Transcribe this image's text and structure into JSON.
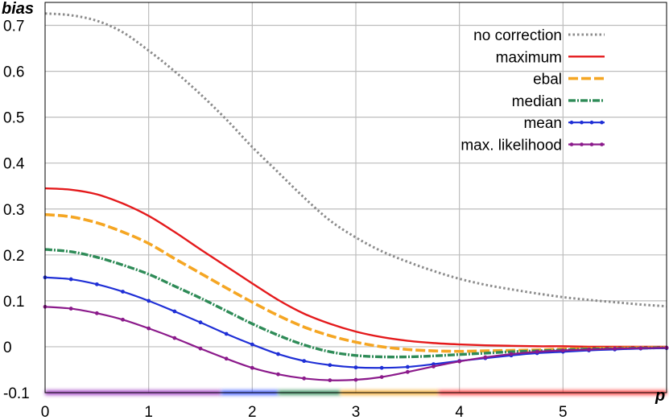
{
  "chart_data": {
    "type": "line",
    "xlabel": "p",
    "ylabel": "bias",
    "xlim": [
      0,
      6
    ],
    "ylim": [
      -0.1,
      0.75
    ],
    "x_ticks": [
      0,
      1,
      2,
      3,
      4,
      5
    ],
    "y_ticks": [
      -0.1,
      0,
      0.1,
      0.2,
      0.3,
      0.4,
      0.5,
      0.6,
      0.7
    ],
    "x_tick_labels": [
      "0",
      "1",
      "2",
      "3",
      "4",
      "5"
    ],
    "y_tick_labels": [
      "-0.1",
      "0",
      "0.1",
      "0.2",
      "0.3",
      "0.4",
      "0.5",
      "0.6",
      "0.7"
    ],
    "grid": true,
    "legend_position": "top-right",
    "series": [
      {
        "name": "no correction",
        "color": "#8c8c8c",
        "style": "dotted",
        "x": [
          0,
          0.25,
          0.5,
          0.75,
          1,
          1.25,
          1.5,
          1.75,
          2,
          2.25,
          2.5,
          2.75,
          3,
          3.25,
          3.5,
          3.75,
          4,
          4.25,
          4.5,
          4.75,
          5,
          5.25,
          5.5,
          5.75,
          6
        ],
        "y": [
          0.726,
          0.722,
          0.71,
          0.685,
          0.645,
          0.6,
          0.55,
          0.495,
          0.435,
          0.38,
          0.325,
          0.275,
          0.238,
          0.208,
          0.185,
          0.165,
          0.148,
          0.135,
          0.125,
          0.116,
          0.108,
          0.102,
          0.097,
          0.092,
          0.088
        ]
      },
      {
        "name": "maximum",
        "color": "#e41a1c",
        "style": "solid",
        "x": [
          0,
          0.25,
          0.5,
          0.75,
          1,
          1.25,
          1.5,
          1.75,
          2,
          2.25,
          2.5,
          2.75,
          3,
          3.25,
          3.5,
          3.75,
          4,
          4.25,
          4.5,
          4.75,
          5,
          5.25,
          5.5,
          5.75,
          6
        ],
        "y": [
          0.345,
          0.342,
          0.332,
          0.312,
          0.285,
          0.25,
          0.212,
          0.175,
          0.138,
          0.102,
          0.072,
          0.05,
          0.033,
          0.021,
          0.013,
          0.008,
          0.005,
          0.003,
          0.002,
          0.001,
          0.001,
          0.0,
          0.0,
          0.0,
          0.0
        ]
      },
      {
        "name": "ebal",
        "color": "#f5a623",
        "style": "thick-dashed",
        "x": [
          0,
          0.25,
          0.5,
          0.75,
          1,
          1.25,
          1.5,
          1.75,
          2,
          2.25,
          2.5,
          2.75,
          3,
          3.25,
          3.5,
          3.75,
          4,
          4.25,
          4.5,
          4.75,
          5,
          5.25,
          5.5,
          5.75,
          6
        ],
        "y": [
          0.288,
          0.283,
          0.27,
          0.25,
          0.225,
          0.192,
          0.16,
          0.128,
          0.097,
          0.068,
          0.043,
          0.024,
          0.01,
          0.0,
          -0.006,
          -0.009,
          -0.01,
          -0.009,
          -0.008,
          -0.007,
          -0.005,
          -0.004,
          -0.003,
          -0.002,
          -0.002
        ]
      },
      {
        "name": "median",
        "color": "#2e8b57",
        "style": "dash-dot",
        "x": [
          0,
          0.25,
          0.5,
          0.75,
          1,
          1.25,
          1.5,
          1.75,
          2,
          2.25,
          2.5,
          2.75,
          3,
          3.25,
          3.5,
          3.75,
          4,
          4.25,
          4.5,
          4.75,
          5,
          5.25,
          5.5,
          5.75,
          6
        ],
        "y": [
          0.212,
          0.207,
          0.195,
          0.178,
          0.158,
          0.132,
          0.106,
          0.078,
          0.05,
          0.025,
          0.004,
          -0.011,
          -0.019,
          -0.022,
          -0.022,
          -0.02,
          -0.017,
          -0.014,
          -0.011,
          -0.009,
          -0.007,
          -0.005,
          -0.004,
          -0.003,
          -0.002
        ]
      },
      {
        "name": "mean",
        "color": "#1f2fd6",
        "style": "solid-with-markers",
        "x": [
          0,
          0.25,
          0.5,
          0.75,
          1,
          1.25,
          1.5,
          1.75,
          2,
          2.25,
          2.5,
          2.75,
          3,
          3.25,
          3.5,
          3.75,
          4,
          4.25,
          4.5,
          4.75,
          5,
          5.25,
          5.5,
          5.75,
          6
        ],
        "y": [
          0.151,
          0.147,
          0.136,
          0.12,
          0.1,
          0.077,
          0.053,
          0.028,
          0.005,
          -0.016,
          -0.031,
          -0.04,
          -0.045,
          -0.046,
          -0.044,
          -0.038,
          -0.031,
          -0.025,
          -0.019,
          -0.014,
          -0.011,
          -0.008,
          -0.006,
          -0.004,
          -0.003
        ]
      },
      {
        "name": "max. likelihood",
        "color": "#8b1a8b",
        "style": "solid-with-markers",
        "x": [
          0,
          0.25,
          0.5,
          0.75,
          1,
          1.25,
          1.5,
          1.75,
          2,
          2.25,
          2.5,
          2.75,
          3,
          3.25,
          3.5,
          3.75,
          4,
          4.25,
          4.5,
          4.75,
          5,
          5.25,
          5.5,
          5.75,
          6
        ],
        "y": [
          0.087,
          0.083,
          0.073,
          0.059,
          0.04,
          0.019,
          -0.004,
          -0.026,
          -0.046,
          -0.06,
          -0.069,
          -0.073,
          -0.072,
          -0.066,
          -0.055,
          -0.043,
          -0.032,
          -0.023,
          -0.016,
          -0.011,
          -0.008,
          -0.006,
          -0.004,
          -0.003,
          -0.002
        ]
      }
    ],
    "bottom_band": {
      "y": -0.1,
      "segments": [
        {
          "from": 0,
          "to": 1.7,
          "color": "#9b30c0"
        },
        {
          "from": 1.7,
          "to": 2.25,
          "color": "#3050ff"
        },
        {
          "from": 2.25,
          "to": 2.85,
          "color": "#2e8b57"
        },
        {
          "from": 2.85,
          "to": 3.8,
          "color": "#f5a623"
        },
        {
          "from": 3.8,
          "to": 6,
          "color": "#ff3030"
        }
      ]
    }
  }
}
